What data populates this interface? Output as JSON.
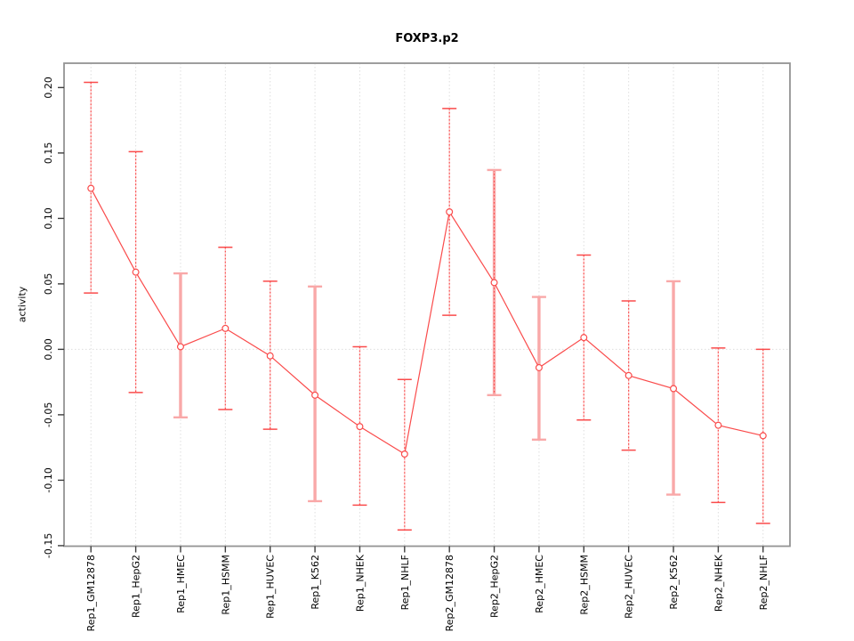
{
  "chart_data": {
    "type": "line",
    "subtype": "points-with-error-bars",
    "title": "FOXP3.p2",
    "xlabel": "",
    "ylabel": "activity",
    "legend": "none",
    "grid": "dotted vertical gridline at each category; dotted horizontal line at y=0",
    "categories": [
      "Rep1_GM12878",
      "Rep1_HepG2",
      "Rep1_HMEC",
      "Rep1_HSMM",
      "Rep1_HUVEC",
      "Rep1_K562",
      "Rep1_NHEK",
      "Rep1_NHLF",
      "Rep2_GM12878",
      "Rep2_HepG2",
      "Rep2_HMEC",
      "Rep2_HSMM",
      "Rep2_HUVEC",
      "Rep2_K562",
      "Rep2_NHEK",
      "Rep2_NHLF"
    ],
    "series": [
      {
        "name": "activity",
        "values": [
          0.123,
          0.059,
          0.002,
          0.016,
          -0.005,
          -0.035,
          -0.059,
          -0.08,
          0.105,
          0.051,
          -0.014,
          0.009,
          -0.02,
          -0.03,
          -0.058,
          -0.066
        ],
        "ci_high": [
          0.204,
          0.151,
          0.058,
          0.078,
          0.052,
          0.048,
          0.002,
          -0.023,
          0.184,
          0.137,
          0.04,
          0.072,
          0.037,
          0.052,
          0.001,
          0.0
        ],
        "ci_low": [
          0.043,
          -0.033,
          -0.052,
          -0.046,
          -0.061,
          -0.116,
          -0.119,
          -0.138,
          0.026,
          -0.035,
          -0.069,
          -0.054,
          -0.077,
          -0.111,
          -0.117,
          -0.133
        ],
        "bar_styles": [
          "dotted",
          "dotted",
          "thick",
          "dotted",
          "dotted",
          "thick",
          "dotted",
          "dotted",
          "dotted",
          "thick+dotted",
          "thick",
          "dotted",
          "dotted",
          "thick",
          "dotted",
          "dotted"
        ]
      }
    ],
    "ylim": [
      -0.1504,
      0.2186
    ],
    "yticks": [
      0.2,
      0.15,
      0.1,
      0.05,
      0.0,
      -0.05,
      -0.1,
      -0.15
    ],
    "ytick_labels": [
      "0.20",
      "0.15",
      "0.10",
      "0.05",
      "0.00",
      "-0.05",
      "-0.10",
      "-0.15"
    ],
    "colors": {
      "point": "#fa4b4b",
      "line": "#fa4b4b",
      "errorbar_dotted": "#fa4b4b",
      "errorbar_dotted_underlay": "#ffb1b1",
      "errorbar_thick": "#f9a8a8",
      "gridline": "#dedede",
      "zero_line": "#dedede",
      "box": "#949494",
      "tick": "#3d3d3d",
      "text": "#000000",
      "background": "#ffffff"
    }
  }
}
